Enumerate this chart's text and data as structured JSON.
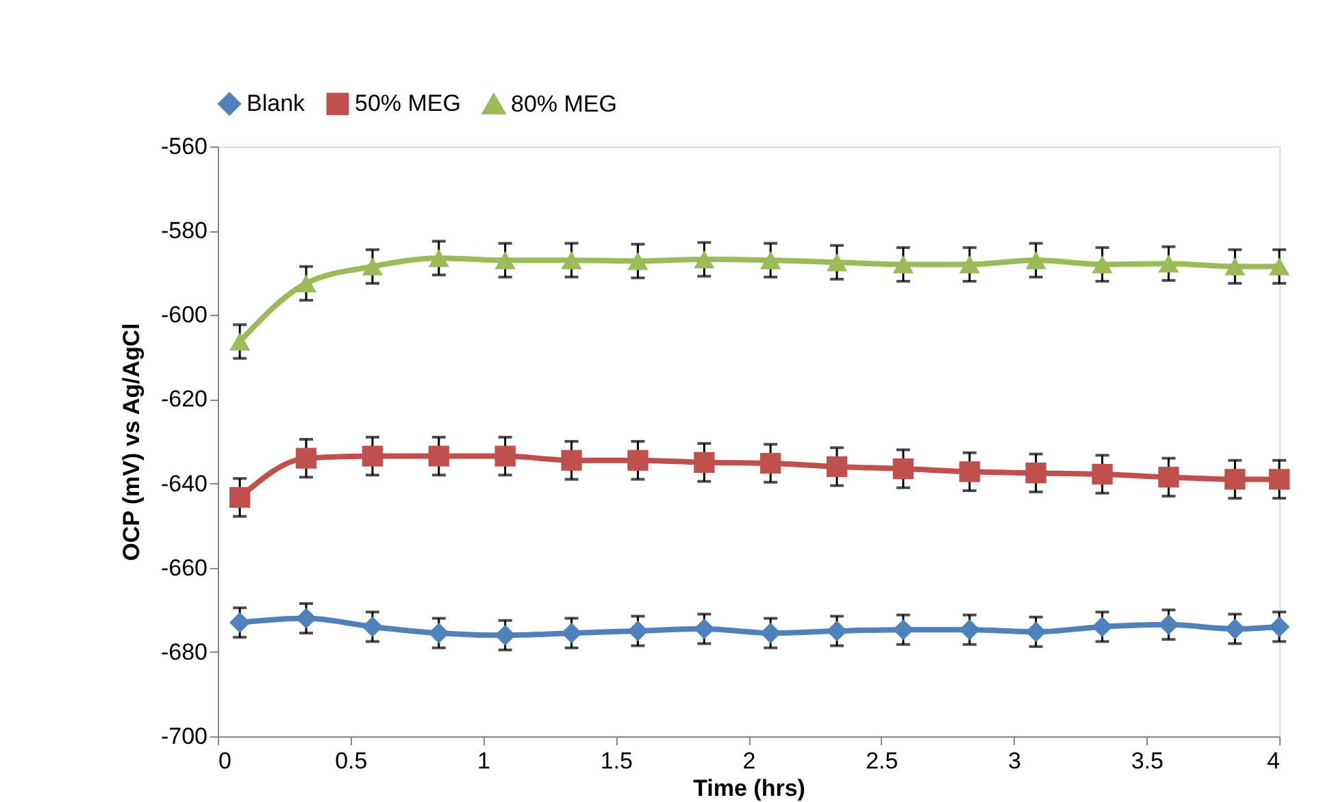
{
  "chart_data": {
    "type": "line",
    "xlabel": "Time (hrs)",
    "ylabel": "OCP  (mV) vs Ag/AgCl",
    "x": [
      0.083,
      0.333,
      0.583,
      0.833,
      1.083,
      1.333,
      1.583,
      1.833,
      2.083,
      2.333,
      2.583,
      2.833,
      3.083,
      3.333,
      3.583,
      3.833,
      4.0
    ],
    "series": [
      {
        "name": "Blank",
        "color": "#4f81bd",
        "marker": "diamond",
        "values": [
          -673,
          -672,
          -674,
          -675.5,
          -676,
          -675.5,
          -675,
          -674.5,
          -675.5,
          -675,
          -674.7,
          -674.7,
          -675.2,
          -674,
          -673.5,
          -674.5,
          -674
        ],
        "errors": [
          3.5,
          3.5,
          3.5,
          3.5,
          3.5,
          3.5,
          3.5,
          3.5,
          3.5,
          3.5,
          3.5,
          3.5,
          3.5,
          3.5,
          3.5,
          3.5,
          3.5
        ]
      },
      {
        "name": "50% MEG",
        "color": "#c0504d",
        "marker": "square",
        "values": [
          -643.3,
          -634,
          -633.5,
          -633.5,
          -633.5,
          -634.5,
          -634.5,
          -635,
          -635.2,
          -636,
          -636.5,
          -637.2,
          -637.5,
          -637.8,
          -638.5,
          -639,
          -639
        ],
        "errors": [
          4.5,
          4.5,
          4.5,
          4.5,
          4.5,
          4.5,
          4.5,
          4.5,
          4.5,
          4.5,
          4.5,
          4.5,
          4.5,
          4.5,
          4.5,
          4.5,
          4.5
        ]
      },
      {
        "name": "80% MEG",
        "color": "#9bbb59",
        "marker": "triangle",
        "values": [
          -606.3,
          -592.5,
          -588.5,
          -586.5,
          -587,
          -587,
          -587.2,
          -586.8,
          -587,
          -587.5,
          -588,
          -588,
          -587,
          -588,
          -587.8,
          -588.5,
          -588.5
        ],
        "errors": [
          4,
          4,
          4,
          4,
          4,
          4,
          4,
          4,
          4,
          4,
          4,
          4,
          4,
          4,
          4,
          4,
          4
        ]
      }
    ],
    "xlim": [
      0,
      4
    ],
    "xticks": [
      0,
      0.5,
      1,
      1.5,
      2,
      2.5,
      3,
      3.5,
      4
    ],
    "ylim": [
      -700,
      -560
    ],
    "yticks": [
      -700,
      -680,
      -660,
      -640,
      -620,
      -600,
      -580,
      -560
    ],
    "grid": false,
    "legend": "top",
    "line_style": "solid"
  }
}
